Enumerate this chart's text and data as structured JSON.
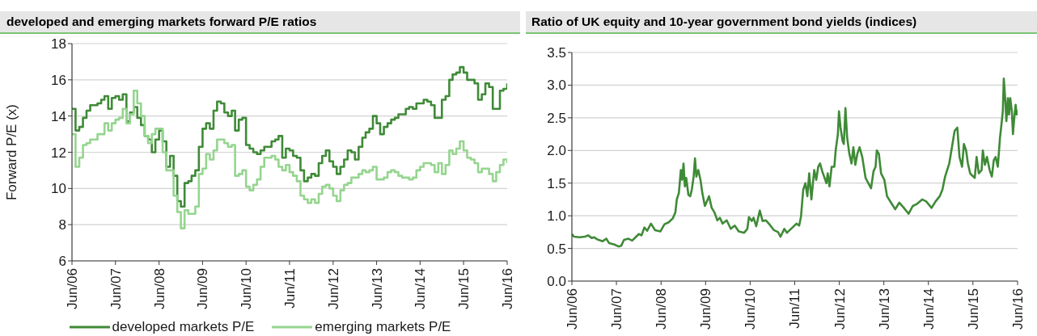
{
  "chart_data": [
    {
      "type": "step",
      "title": "developed and emerging markets forward P/E ratios",
      "ylabel": "Forward P/E (x)",
      "xlim": [
        "2006-06",
        "2016-06"
      ],
      "xticks": [
        {
          "value": "2006-06",
          "label": "Jun/06"
        },
        {
          "value": "2007-06",
          "label": "Jun/07"
        },
        {
          "value": "2008-06",
          "label": "Jun/08"
        },
        {
          "value": "2009-06",
          "label": "Jun/09"
        },
        {
          "value": "2010-06",
          "label": "Jun/10"
        },
        {
          "value": "2011-06",
          "label": "Jun/11"
        },
        {
          "value": "2012-06",
          "label": "Jun/12"
        },
        {
          "value": "2013-06",
          "label": "Jun/13"
        },
        {
          "value": "2014-06",
          "label": "Jun/14"
        },
        {
          "value": "2015-06",
          "label": "Jun/15"
        },
        {
          "value": "2016-06",
          "label": "Jun/16"
        }
      ],
      "ylim": [
        6,
        18
      ],
      "yticks": [
        6,
        8,
        10,
        12,
        14,
        16,
        18
      ],
      "grid": "y",
      "legend": "bottom",
      "series": [
        {
          "name": "developed markets P/E",
          "color": "#3f8a37",
          "x": [
            "2006-06",
            "2006-07",
            "2006-08",
            "2006-09",
            "2006-10",
            "2006-11",
            "2007-01",
            "2007-02",
            "2007-03",
            "2007-04",
            "2007-05",
            "2007-06",
            "2007-07",
            "2007-08",
            "2007-09",
            "2007-10",
            "2007-11",
            "2007-12",
            "2008-01",
            "2008-02",
            "2008-03",
            "2008-04",
            "2008-05",
            "2008-06",
            "2008-07",
            "2008-08",
            "2008-09",
            "2008-10",
            "2008-11",
            "2008-12",
            "2009-01",
            "2009-02",
            "2009-03",
            "2009-04",
            "2009-05",
            "2009-06",
            "2009-07",
            "2009-08",
            "2009-09",
            "2009-10",
            "2009-11",
            "2009-12",
            "2010-01",
            "2010-02",
            "2010-03",
            "2010-04",
            "2010-05",
            "2010-06",
            "2010-07",
            "2010-08",
            "2010-09",
            "2010-10",
            "2010-11",
            "2011-01",
            "2011-02",
            "2011-03",
            "2011-04",
            "2011-05",
            "2011-06",
            "2011-07",
            "2011-08",
            "2011-09",
            "2011-10",
            "2011-11",
            "2011-12",
            "2012-01",
            "2012-02",
            "2012-03",
            "2012-04",
            "2012-05",
            "2012-06",
            "2012-07",
            "2012-08",
            "2012-09",
            "2012-10",
            "2012-11",
            "2012-12",
            "2013-01",
            "2013-02",
            "2013-03",
            "2013-04",
            "2013-05",
            "2013-06",
            "2013-07",
            "2013-08",
            "2013-09",
            "2013-10",
            "2013-11",
            "2013-12",
            "2014-02",
            "2014-03",
            "2014-04",
            "2014-05",
            "2014-07",
            "2014-08",
            "2014-09",
            "2014-10",
            "2014-12",
            "2015-01",
            "2015-02",
            "2015-03",
            "2015-04",
            "2015-05",
            "2015-06",
            "2015-07",
            "2015-09",
            "2015-10",
            "2015-11",
            "2015-12",
            "2016-01",
            "2016-02",
            "2016-04",
            "2016-05",
            "2016-06"
          ],
          "values": [
            14.4,
            13.2,
            13.4,
            13.9,
            14.3,
            14.6,
            14.7,
            14.9,
            15.1,
            14.4,
            15.0,
            15.1,
            14.9,
            15.2,
            13.7,
            14.2,
            14.5,
            13.9,
            13.5,
            12.9,
            12.7,
            12.0,
            12.7,
            13.2,
            12.6,
            11.2,
            11.8,
            10.7,
            9.3,
            9.0,
            10.3,
            10.4,
            10.7,
            11.0,
            12.3,
            13.3,
            13.6,
            13.3,
            14.3,
            14.8,
            14.7,
            14.2,
            14.0,
            14.3,
            13.2,
            13.8,
            13.9,
            12.4,
            12.2,
            12.0,
            11.9,
            12.1,
            12.3,
            12.6,
            12.7,
            12.9,
            11.7,
            12.2,
            12.1,
            11.8,
            11.7,
            11.0,
            10.4,
            10.6,
            10.8,
            10.7,
            11.4,
            11.8,
            12.1,
            11.5,
            11.2,
            10.8,
            11.2,
            11.6,
            12.1,
            12.0,
            11.6,
            12.3,
            12.8,
            13.1,
            13.3,
            14.0,
            13.6,
            13.0,
            13.4,
            13.6,
            13.8,
            13.9,
            14.1,
            14.4,
            14.5,
            14.4,
            14.7,
            14.9,
            14.8,
            14.6,
            13.9,
            14.9,
            15.1,
            16.0,
            16.3,
            16.4,
            16.7,
            16.4,
            16.0,
            15.8,
            14.9,
            15.2,
            15.8,
            15.6,
            14.4,
            15.4,
            15.5,
            15.8
          ]
        },
        {
          "name": "emerging markets P/E",
          "color": "#95d58f",
          "x": [
            "2006-06",
            "2006-07",
            "2006-08",
            "2006-09",
            "2006-10",
            "2006-11",
            "2007-01",
            "2007-03",
            "2007-04",
            "2007-05",
            "2007-06",
            "2007-07",
            "2007-08",
            "2007-09",
            "2007-10",
            "2007-11",
            "2007-12",
            "2008-01",
            "2008-02",
            "2008-03",
            "2008-04",
            "2008-05",
            "2008-07",
            "2008-08",
            "2008-10",
            "2008-11",
            "2008-12",
            "2009-01",
            "2009-02",
            "2009-04",
            "2009-05",
            "2009-06",
            "2009-07",
            "2009-08",
            "2009-09",
            "2009-10",
            "2009-12",
            "2010-01",
            "2010-02",
            "2010-03",
            "2010-04",
            "2010-05",
            "2010-06",
            "2010-07",
            "2010-08",
            "2010-09",
            "2010-10",
            "2010-11",
            "2011-01",
            "2011-02",
            "2011-03",
            "2011-04",
            "2011-05",
            "2011-06",
            "2011-07",
            "2011-08",
            "2011-09",
            "2011-10",
            "2011-11",
            "2011-12",
            "2012-01",
            "2012-02",
            "2012-03",
            "2012-04",
            "2012-05",
            "2012-06",
            "2012-07",
            "2012-08",
            "2012-09",
            "2012-10",
            "2012-11",
            "2013-01",
            "2013-02",
            "2013-03",
            "2013-04",
            "2013-05",
            "2013-06",
            "2013-08",
            "2013-09",
            "2013-10",
            "2013-11",
            "2013-12",
            "2014-01",
            "2014-03",
            "2014-04",
            "2014-05",
            "2014-06",
            "2014-07",
            "2014-09",
            "2014-10",
            "2014-11",
            "2014-12",
            "2015-01",
            "2015-02",
            "2015-03",
            "2015-04",
            "2015-05",
            "2015-06",
            "2015-07",
            "2015-08",
            "2015-09",
            "2015-10",
            "2015-11",
            "2016-01",
            "2016-02",
            "2016-03",
            "2016-04",
            "2016-05",
            "2016-06"
          ],
          "values": [
            13.0,
            11.2,
            11.7,
            12.4,
            12.5,
            12.7,
            13.0,
            13.6,
            13.2,
            13.6,
            13.8,
            13.9,
            14.4,
            13.6,
            14.1,
            15.4,
            14.7,
            14.0,
            12.9,
            12.5,
            13.0,
            13.3,
            12.0,
            11.0,
            9.6,
            8.7,
            7.8,
            8.8,
            8.6,
            9.0,
            10.8,
            11.1,
            11.9,
            11.6,
            12.1,
            12.7,
            12.5,
            12.3,
            12.4,
            10.7,
            10.8,
            11.0,
            10.1,
            9.9,
            10.2,
            10.5,
            11.2,
            11.7,
            11.8,
            11.6,
            11.2,
            11.0,
            11.3,
            10.9,
            10.7,
            10.4,
            9.6,
            9.4,
            9.2,
            9.4,
            9.2,
            9.7,
            10.1,
            10.2,
            10.0,
            9.6,
            9.3,
            9.9,
            10.2,
            10.3,
            10.6,
            10.8,
            11.0,
            10.9,
            11.0,
            11.2,
            10.5,
            10.6,
            10.9,
            11.0,
            10.9,
            10.7,
            10.6,
            10.5,
            10.6,
            11.0,
            11.2,
            11.4,
            11.3,
            10.9,
            11.4,
            10.8,
            11.3,
            12.1,
            11.9,
            12.2,
            12.6,
            12.1,
            11.7,
            11.6,
            11.4,
            10.9,
            11.1,
            10.8,
            10.4,
            10.9,
            11.3,
            11.6,
            11.4
          ]
        }
      ]
    },
    {
      "type": "line",
      "title": "Ratio of UK equity and 10-year government bond yields (indices)",
      "xlim": [
        "2006-06",
        "2016-06"
      ],
      "xticks": [
        {
          "value": "2006-06",
          "label": "Jun/06"
        },
        {
          "value": "2007-06",
          "label": "Jun/07"
        },
        {
          "value": "2008-06",
          "label": "Jun/08"
        },
        {
          "value": "2009-06",
          "label": "Jun/09"
        },
        {
          "value": "2010-06",
          "label": "Jun/10"
        },
        {
          "value": "2011-06",
          "label": "Jun/11"
        },
        {
          "value": "2012-06",
          "label": "Jun/12"
        },
        {
          "value": "2013-06",
          "label": "Jun/13"
        },
        {
          "value": "2014-06",
          "label": "Jun/14"
        },
        {
          "value": "2015-06",
          "label": "Jun/15"
        },
        {
          "value": "2016-06",
          "label": "Jun/16"
        }
      ],
      "ylim": [
        0,
        3.5
      ],
      "yticks": [
        {
          "value": 0,
          "label": "0.0"
        },
        0.5,
        {
          "value": 1,
          "label": "1.0"
        },
        1.5,
        {
          "value": 2,
          "label": "2.0"
        },
        2.5,
        {
          "value": 3,
          "label": "3.0"
        },
        3.5
      ],
      "grid": "y",
      "series": [
        {
          "color": "#3f8a37",
          "x": [
            "2006-06-01",
            "2006-06-18",
            "2006-08-02",
            "2006-09-16",
            "2006-10-12",
            "2006-11-10",
            "2006-12-02",
            "2006-12-24",
            "2007-02-08",
            "2007-03-10",
            "2007-04-02",
            "2007-05-16",
            "2007-06-18",
            "2007-07-10",
            "2007-08-02",
            "2007-09-05",
            "2007-10-08",
            "2007-11-10",
            "2007-12-02",
            "2007-12-24",
            "2008-01-16",
            "2008-02-08",
            "2008-03-10",
            "2008-04-13",
            "2008-05-26",
            "2008-06-29",
            "2008-08-02",
            "2008-09-05",
            "2008-09-26",
            "2008-10-08",
            "2008-10-25",
            "2008-11-10",
            "2008-11-21",
            "2008-12-02",
            "2008-12-13",
            "2008-12-24",
            "2009-01-11",
            "2009-01-26",
            "2009-02-08",
            "2009-02-23",
            "2009-03-06",
            "2009-03-17",
            "2009-04-02",
            "2009-04-20",
            "2009-05-05",
            "2009-05-26",
            "2009-06-18",
            "2009-06-29",
            "2009-07-21",
            "2009-08-13",
            "2009-09-05",
            "2009-09-26",
            "2009-10-18",
            "2009-11-21",
            "2009-12-24",
            "2010-01-26",
            "2010-02-27",
            "2010-04-13",
            "2010-05-09",
            "2010-05-22",
            "2010-06-14",
            "2010-06-29",
            "2010-07-21",
            "2010-08-19",
            "2010-09-11",
            "2010-10-08",
            "2010-11-10",
            "2010-12-13",
            "2011-01-16",
            "2011-02-05",
            "2011-03-08",
            "2011-03-30",
            "2011-05-02",
            "2011-06-16",
            "2011-07-08",
            "2011-07-23",
            "2011-08-10",
            "2011-08-28",
            "2011-09-13",
            "2011-09-28",
            "2011-10-16",
            "2011-11-08",
            "2011-11-25",
            "2011-12-11",
            "2011-12-26",
            "2012-01-13",
            "2012-02-16",
            "2012-02-27",
            "2012-03-12",
            "2012-03-30",
            "2012-04-21",
            "2012-05-02",
            "2012-05-20",
            "2012-05-29",
            "2012-06-11",
            "2012-06-27",
            "2012-07-08",
            "2012-07-21",
            "2012-08-04",
            "2012-08-22",
            "2012-09-09",
            "2012-09-24",
            "2012-10-10",
            "2012-10-27",
            "2012-11-14",
            "2012-12-06",
            "2013-01-02",
            "2013-01-24",
            "2013-02-16",
            "2013-03-08",
            "2013-03-25",
            "2013-04-04",
            "2013-04-21",
            "2013-05-09",
            "2013-06-05",
            "2013-06-27",
            "2013-07-30",
            "2013-09-02",
            "2013-10-05",
            "2013-11-08",
            "2013-12-21",
            "2014-01-24",
            "2014-02-27",
            "2014-04-11",
            "2014-05-14",
            "2014-06-27",
            "2014-07-30",
            "2014-09-02",
            "2014-09-24",
            "2014-10-16",
            "2014-11-19",
            "2014-12-11",
            "2015-01-02",
            "2015-01-24",
            "2015-02-11",
            "2015-03-04",
            "2015-03-19",
            "2015-04-06",
            "2015-04-21",
            "2015-05-09",
            "2015-05-24",
            "2015-06-16",
            "2015-07-01",
            "2015-07-19",
            "2015-08-11",
            "2015-08-21",
            "2015-09-07",
            "2015-09-24",
            "2015-10-16",
            "2015-11-03",
            "2015-11-19",
            "2015-12-04",
            "2015-12-22",
            "2016-01-09",
            "2016-01-18",
            "2016-02-01",
            "2016-02-09",
            "2016-02-22",
            "2016-03-01",
            "2016-03-14",
            "2016-03-23",
            "2016-04-02",
            "2016-04-15",
            "2016-04-24",
            "2016-05-07",
            "2016-05-16",
            "2016-05-24",
            "2016-06-01"
          ],
          "values": [
            0.72,
            0.68,
            0.67,
            0.68,
            0.7,
            0.66,
            0.67,
            0.64,
            0.61,
            0.65,
            0.58,
            0.56,
            0.53,
            0.54,
            0.63,
            0.65,
            0.62,
            0.68,
            0.72,
            0.7,
            0.82,
            0.77,
            0.88,
            0.78,
            0.76,
            0.87,
            0.9,
            0.96,
            1.05,
            1.25,
            1.35,
            1.7,
            1.55,
            1.8,
            1.45,
            1.58,
            1.32,
            1.3,
            1.4,
            1.6,
            1.88,
            1.6,
            1.7,
            1.55,
            1.35,
            1.15,
            1.25,
            1.3,
            1.12,
            1.05,
            0.93,
            0.97,
            0.88,
            0.93,
            0.8,
            0.85,
            0.76,
            0.74,
            0.8,
            0.98,
            0.92,
            0.97,
            0.84,
            1.08,
            0.92,
            0.93,
            0.86,
            0.78,
            0.75,
            0.68,
            0.8,
            0.74,
            0.8,
            0.88,
            0.85,
            0.99,
            1.4,
            1.5,
            1.3,
            1.65,
            1.25,
            1.7,
            1.55,
            1.75,
            1.8,
            1.68,
            1.5,
            1.65,
            1.45,
            1.75,
            1.75,
            2.0,
            2.25,
            2.6,
            2.35,
            2.15,
            2.1,
            2.65,
            2.2,
            1.95,
            1.8,
            2.05,
            1.78,
            1.95,
            2.05,
            1.9,
            1.58,
            1.5,
            1.42,
            1.68,
            1.75,
            2.0,
            1.95,
            1.65,
            1.55,
            1.3,
            1.2,
            1.1,
            1.2,
            1.13,
            1.03,
            1.15,
            1.18,
            1.25,
            1.22,
            1.12,
            1.22,
            1.3,
            1.4,
            1.6,
            1.8,
            2.05,
            2.3,
            2.35,
            1.9,
            1.75,
            2.1,
            2.0,
            1.8,
            1.65,
            1.62,
            1.58,
            1.9,
            1.65,
            1.7,
            2.0,
            1.78,
            1.9,
            1.7,
            1.6,
            1.85,
            1.9,
            1.75,
            2.2,
            2.35,
            2.6,
            3.1,
            2.75,
            2.45,
            2.8,
            2.55,
            2.8,
            2.6,
            2.25,
            2.55,
            2.7,
            2.55,
            2.62
          ]
        }
      ]
    }
  ]
}
